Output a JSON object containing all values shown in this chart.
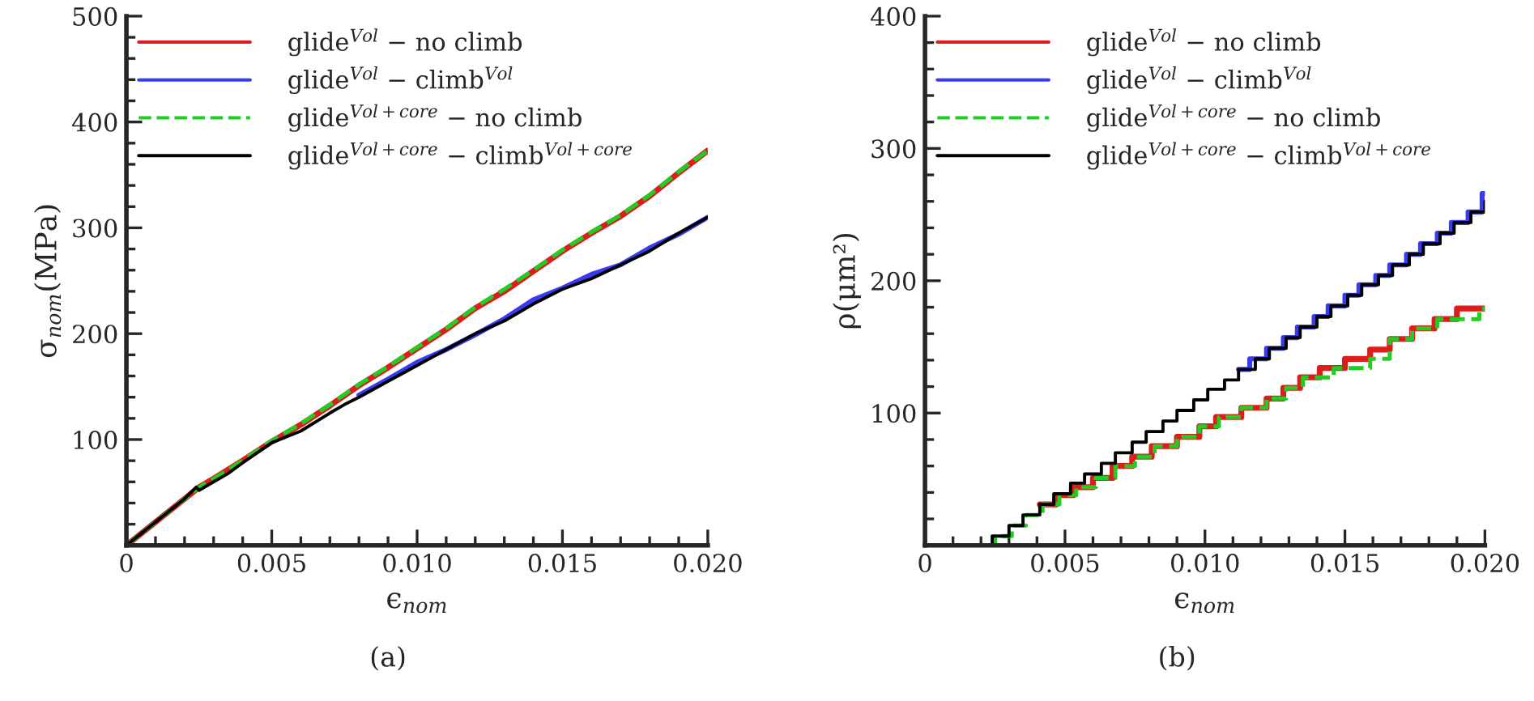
{
  "chart_data": [
    {
      "type": "line",
      "xlabel": "ϵ$_{nom}$",
      "ylabel": "σ$_{nom}$(MPa)",
      "annotations": [
        "(a)"
      ],
      "xlim": [
        0,
        0.02
      ],
      "ylim": [
        0,
        500
      ],
      "xticks": [
        {
          "value": 0,
          "label": "0"
        },
        {
          "value": 0.005,
          "label": "0.005"
        },
        {
          "value": 0.01,
          "label": "0.010"
        },
        {
          "value": 0.015,
          "label": "0.015"
        },
        {
          "value": 0.02,
          "label": "0.020"
        }
      ],
      "yticks": [
        100,
        200,
        300,
        400,
        500
      ],
      "grid": false,
      "legend": "top left",
      "series": [
        {
          "name": "glide$^{Vol}$ − no climb",
          "color": "#dd1c1c",
          "line_style": "solid",
          "x": [
            0,
            0.001,
            0.002,
            0.0025,
            0.003,
            0.004,
            0.005,
            0.006,
            0.007,
            0.008,
            0.009,
            0.01,
            0.011,
            0.012,
            0.013,
            0.014,
            0.015,
            0.016,
            0.017,
            0.018,
            0.019,
            0.02
          ],
          "values": [
            0,
            22,
            44,
            55,
            63,
            80,
            98,
            114,
            132,
            151,
            168,
            186,
            204,
            224,
            240,
            259,
            278,
            295,
            311,
            330,
            352,
            373
          ]
        },
        {
          "name": "glide$^{Vol}$ − climb$^{Vol}$",
          "color": "#3a3aee",
          "line_style": "solid",
          "x": [
            0.008,
            0.009,
            0.01,
            0.011,
            0.012,
            0.013,
            0.014,
            0.015,
            0.016,
            0.017,
            0.018,
            0.019,
            0.02
          ],
          "values": [
            142,
            157,
            173,
            185,
            199,
            214,
            232,
            243,
            256,
            265,
            281,
            294,
            310
          ]
        },
        {
          "name": "glide$^{Vol+core}$ − no climb",
          "color": "#22cc22",
          "line_style": "dashed",
          "x": [
            0,
            0.001,
            0.002,
            0.0025,
            0.003,
            0.004,
            0.005,
            0.006,
            0.007,
            0.008,
            0.009,
            0.01,
            0.011,
            0.012,
            0.013,
            0.014,
            0.015,
            0.016,
            0.017,
            0.018,
            0.019,
            0.02
          ],
          "values": [
            0,
            22,
            44,
            55,
            63,
            80,
            99,
            115,
            133,
            152,
            169,
            187,
            205,
            225,
            242,
            260,
            279,
            296,
            312,
            331,
            353,
            373
          ]
        },
        {
          "name": "glide$^{Vol+core}$ − climb$^{Vol+core}$",
          "color": "#000000",
          "line_style": "solid",
          "x": [
            0,
            0.001,
            0.002,
            0.0024,
            0.0025,
            0.003,
            0.0035,
            0.004,
            0.005,
            0.006,
            0.007,
            0.0075,
            0.008,
            0.009,
            0.01,
            0.011,
            0.012,
            0.013,
            0.014,
            0.015,
            0.016,
            0.017,
            0.018,
            0.019,
            0.02
          ],
          "values": [
            0,
            22,
            44,
            55,
            52,
            60,
            68,
            78,
            97,
            108,
            125,
            133,
            140,
            155,
            170,
            185,
            200,
            212,
            228,
            242,
            252,
            265,
            278,
            295,
            310
          ]
        }
      ]
    },
    {
      "type": "step",
      "xlabel": "ϵ$_{nom}$",
      "ylabel": "ρ(μm²)",
      "annotations": [
        "(b)"
      ],
      "xlim": [
        0,
        0.02
      ],
      "ylim": [
        0,
        400
      ],
      "xticks": [
        {
          "value": 0,
          "label": "0"
        },
        {
          "value": 0.005,
          "label": "0.005"
        },
        {
          "value": 0.01,
          "label": "0.010"
        },
        {
          "value": 0.015,
          "label": "0.015"
        },
        {
          "value": 0.02,
          "label": "0.020"
        }
      ],
      "yticks": [
        100,
        200,
        300,
        400
      ],
      "grid": false,
      "legend": "top left",
      "series": [
        {
          "name": "glide$^{Vol}$ − no climb",
          "color": "#dd1c1c",
          "line_style": "solid",
          "x": [
            0.0041,
            0.0047,
            0.0053,
            0.006,
            0.0067,
            0.0074,
            0.0081,
            0.009,
            0.0098,
            0.0104,
            0.0113,
            0.0122,
            0.0128,
            0.0134,
            0.0141,
            0.015,
            0.0159,
            0.0166,
            0.0174,
            0.0182,
            0.019,
            0.02
          ],
          "values": [
            31,
            38,
            44,
            51,
            60,
            67,
            75,
            82,
            90,
            97,
            104,
            111,
            119,
            127,
            134,
            141,
            148,
            156,
            164,
            171,
            179,
            179
          ]
        },
        {
          "name": "glide$^{Vol}$ − climb$^{Vol}$",
          "color": "#3a3aee",
          "line_style": "solid",
          "x": [
            0.0112,
            0.0116,
            0.0122,
            0.0128,
            0.0133,
            0.0139,
            0.0144,
            0.015,
            0.0155,
            0.0161,
            0.0166,
            0.0172,
            0.0177,
            0.0183,
            0.0188,
            0.0194,
            0.0199,
            0.02
          ],
          "values": [
            133,
            141,
            149,
            157,
            165,
            173,
            181,
            189,
            197,
            204,
            212,
            220,
            228,
            236,
            244,
            252,
            266,
            266
          ]
        },
        {
          "name": "glide$^{Vol+core}$ − no climb",
          "color": "#22cc22",
          "line_style": "dashed",
          "x": [
            0,
            0.0025,
            0.0031,
            0.0036,
            0.0042,
            0.0048,
            0.0054,
            0.0061,
            0.0068,
            0.0075,
            0.0082,
            0.009,
            0.0098,
            0.0105,
            0.0113,
            0.0122,
            0.0129,
            0.0135,
            0.0146,
            0.015,
            0.0159,
            0.0166,
            0.0174,
            0.0183,
            0.0193,
            0.0198,
            0.02
          ],
          "values": [
            0,
            7,
            15,
            23,
            31,
            38,
            44,
            51,
            60,
            67,
            75,
            82,
            90,
            97,
            104,
            111,
            119,
            127,
            134,
            134,
            141,
            156,
            164,
            171,
            171,
            179,
            179
          ]
        },
        {
          "name": "glide$^{Vol+core}$ − climb$^{Vol+core}$",
          "color": "#000000",
          "line_style": "solid",
          "x": [
            0,
            0.0024,
            0.003,
            0.0035,
            0.0041,
            0.0046,
            0.0052,
            0.0057,
            0.0063,
            0.0068,
            0.0074,
            0.0079,
            0.0085,
            0.009,
            0.0096,
            0.0101,
            0.0107,
            0.0112,
            0.0118,
            0.0123,
            0.0129,
            0.0134,
            0.014,
            0.0145,
            0.0151,
            0.0156,
            0.0162,
            0.0167,
            0.0173,
            0.0178,
            0.0184,
            0.0189,
            0.0195,
            0.02
          ],
          "values": [
            0,
            7,
            15,
            23,
            31,
            39,
            47,
            54,
            62,
            70,
            78,
            86,
            94,
            102,
            110,
            118,
            125,
            133,
            141,
            149,
            157,
            165,
            173,
            181,
            189,
            197,
            204,
            212,
            220,
            228,
            236,
            244,
            252,
            260
          ]
        }
      ]
    }
  ]
}
